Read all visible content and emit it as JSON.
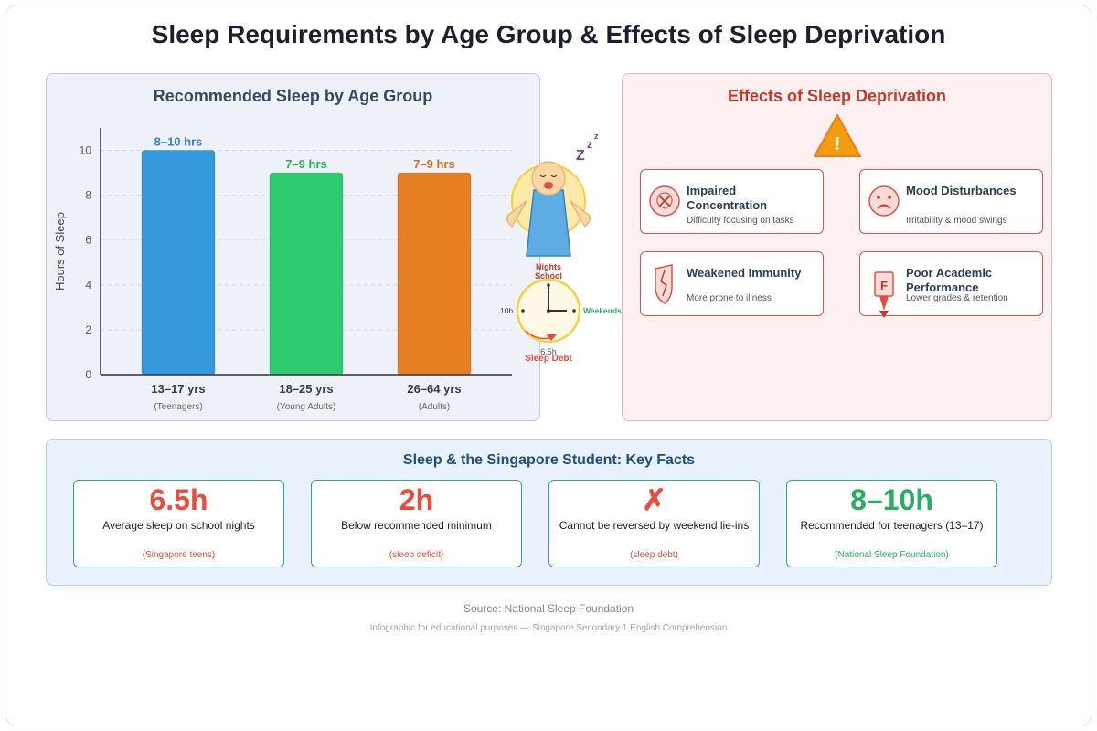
{
  "title": "Sleep Requirements by Age Group & Effects of Sleep Deprivation",
  "chart_data": {
    "type": "bar",
    "title": "Recommended Sleep by Age Group",
    "ylabel": "Hours of Sleep",
    "xlabel": "",
    "ylim": [
      0,
      11
    ],
    "yticks": [
      0,
      2,
      4,
      6,
      8,
      10
    ],
    "grid": true,
    "categories": [
      "13–17 yrs",
      "18–25 yrs",
      "26–64 yrs"
    ],
    "subcategories": [
      "(Teenagers)",
      "(Young Adults)",
      "(Adults)"
    ],
    "values": [
      10,
      9,
      9
    ],
    "data_labels": [
      "8–10 hrs",
      "7–9 hrs",
      "7–9 hrs"
    ],
    "colors": [
      "#3498db",
      "#2ecc71",
      "#e67e22"
    ],
    "label_colors": [
      "#2e86c1",
      "#27ae60",
      "#ca6f1e"
    ]
  },
  "illustration": {
    "zzz": [
      "Z",
      "z",
      "z"
    ],
    "clock_left": "10h",
    "clock_right": "Weekends",
    "clock_top": [
      "Nights",
      "School"
    ],
    "clock_bottom": "6.5h",
    "debt": "Sleep Debt"
  },
  "effects": {
    "title": "Effects of Sleep Deprivation",
    "warning_glyph": "!",
    "items": [
      {
        "name": "Impaired Concentration",
        "desc": "Difficulty focusing on tasks"
      },
      {
        "name": "Mood Disturbances",
        "desc": "Irritability & mood swings"
      },
      {
        "name": "Weakened Immunity",
        "desc": "More prone to illness"
      },
      {
        "name": "Poor Academic Performance",
        "desc": "Lower grades & retention"
      }
    ],
    "grade_glyph": "F"
  },
  "facts": {
    "title": "Sleep & the Singapore Student: Key Facts",
    "items": [
      {
        "value": "6.5h",
        "label": "Average sleep on school nights",
        "note": "(Singapore teens)",
        "color": "#e74c3c"
      },
      {
        "value": "2h",
        "label": "Below recommended minimum",
        "note": "(sleep deficit)",
        "color": "#e74c3c"
      },
      {
        "value": "✗",
        "label": "Cannot be reversed by weekend lie-ins",
        "note": "(sleep debt)",
        "color": "#e74c3c"
      },
      {
        "value": "8–10h",
        "label": "Recommended for teenagers (13–17)",
        "note": "(National Sleep Foundation)",
        "color": "#27ae60"
      }
    ]
  },
  "source": "Source: National Sleep Foundation",
  "footnote": "Infographic for educational purposes — Singapore Secondary 1 English Comprehension"
}
